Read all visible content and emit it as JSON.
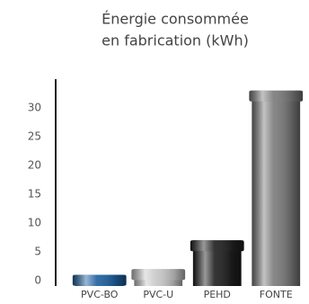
{
  "chart_data": {
    "type": "bar",
    "title": [
      "Énergie consommée",
      "en fabrication (kWh)"
    ],
    "categories": [
      "PVC-BO",
      "PVC-U",
      "PEHD",
      "FONTE"
    ],
    "values": [
      1,
      2,
      7,
      33
    ],
    "colors": [
      "#1d5f9e",
      "#c8c8c8",
      "#1e1e1e",
      "#7a7a7a"
    ],
    "ylim": [
      0,
      35
    ],
    "yticks": [
      0,
      5,
      10,
      15,
      20,
      25,
      30
    ],
    "grid": false
  }
}
